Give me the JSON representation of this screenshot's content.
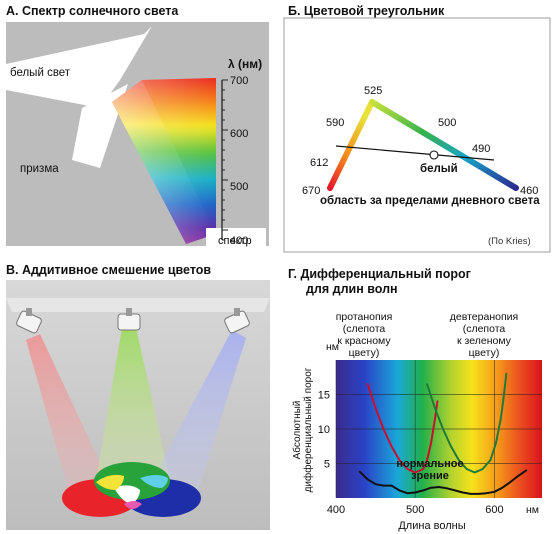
{
  "panels": {
    "a": {
      "title": "А. Спектр солнечного света",
      "white_light": "белый свет",
      "prism": "призма",
      "spectrum": "спектр",
      "unit": "λ (нм)",
      "ticks": [
        "700",
        "600",
        "500",
        "400"
      ]
    },
    "b": {
      "title": "Б. Цветовой треугольник",
      "labels": [
        "525",
        "590",
        "500",
        "490",
        "612",
        "670",
        "460"
      ],
      "white": "белый",
      "caption": "область за пределами дневного света",
      "credit": "(По Kries)"
    },
    "c": {
      "title": "В. Аддитивное смешение цветов"
    },
    "d": {
      "title_line1": "Г.  Дифференциальный порог",
      "title_line2": "для длин волн",
      "protanopia": [
        "протанопия",
        "(слепота",
        "к красному",
        "цвету)"
      ],
      "deuteranopia": [
        "девтеранопия",
        "(слепота",
        "к зеленому",
        "цвету)"
      ],
      "ylabel_line1": "Абсолютный",
      "ylabel_line2": "дифференциальный порог",
      "y_unit": "нм",
      "x_unit": "нм",
      "xlabel": "Длина волны",
      "normal": [
        "нормальное",
        "зрение"
      ]
    }
  },
  "chart_data": {
    "type": "line",
    "xlabel": "Длина волны",
    "ylabel": "Абсолютный дифференциальный порог",
    "x_ticks": [
      "400",
      "500",
      "600"
    ],
    "y_ticks": [
      "5",
      "10",
      "15"
    ],
    "xlim": [
      400,
      660
    ],
    "ylim": [
      0,
      20
    ],
    "grid": true,
    "series": [
      {
        "name": "протанопия",
        "color": "#c8102e",
        "points": [
          [
            440,
            16.5
          ],
          [
            450,
            13
          ],
          [
            460,
            10
          ],
          [
            470,
            7.5
          ],
          [
            480,
            5.5
          ],
          [
            490,
            4.2
          ],
          [
            500,
            3.7
          ],
          [
            510,
            4.2
          ],
          [
            515,
            5.5
          ],
          [
            520,
            8
          ],
          [
            525,
            11.5
          ],
          [
            528,
            14
          ]
        ]
      },
      {
        "name": "девтеранопия",
        "color": "#1f7a3a",
        "points": [
          [
            515,
            16.5
          ],
          [
            525,
            13
          ],
          [
            535,
            10
          ],
          [
            545,
            7.5
          ],
          [
            555,
            5.5
          ],
          [
            565,
            4.2
          ],
          [
            575,
            3.7
          ],
          [
            585,
            4.2
          ],
          [
            595,
            5.5
          ],
          [
            602,
            8
          ],
          [
            608,
            11.5
          ],
          [
            612,
            15
          ],
          [
            615,
            18
          ]
        ]
      },
      {
        "name": "нормальное зрение",
        "color": "#111111",
        "points": [
          [
            430,
            3.8
          ],
          [
            440,
            2.7
          ],
          [
            450,
            2.0
          ],
          [
            460,
            1.8
          ],
          [
            470,
            1.8
          ],
          [
            480,
            1.1
          ],
          [
            490,
            0.7
          ],
          [
            500,
            0.8
          ],
          [
            510,
            1.1
          ],
          [
            520,
            1.5
          ],
          [
            530,
            1.6
          ],
          [
            540,
            1.4
          ],
          [
            550,
            1.1
          ],
          [
            560,
            0.8
          ],
          [
            570,
            0.6
          ],
          [
            580,
            0.6
          ],
          [
            590,
            0.7
          ],
          [
            600,
            0.9
          ],
          [
            610,
            1.5
          ],
          [
            620,
            2.3
          ],
          [
            630,
            3.2
          ],
          [
            640,
            4.0
          ]
        ]
      }
    ]
  }
}
